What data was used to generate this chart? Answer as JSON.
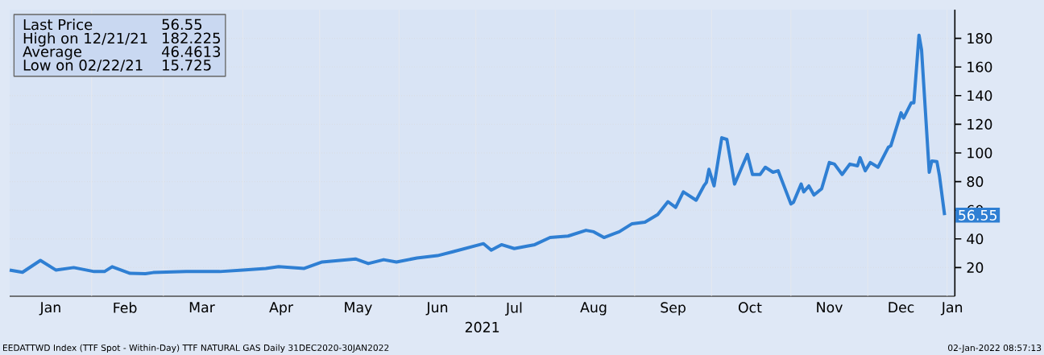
{
  "chart_data": {
    "type": "line",
    "xlabel": "2021",
    "x": [
      "2020-12-31",
      "2021-01-05",
      "2021-01-12",
      "2021-01-18",
      "2021-01-25",
      "2021-02-02",
      "2021-02-06",
      "2021-02-09",
      "2021-02-16",
      "2021-02-22",
      "2021-02-25",
      "2021-03-10",
      "2021-03-23",
      "2021-04-01",
      "2021-04-10",
      "2021-04-15",
      "2021-04-25",
      "2021-05-02",
      "2021-05-15",
      "2021-05-20",
      "2021-05-26",
      "2021-05-31",
      "2021-06-08",
      "2021-06-16",
      "2021-06-22",
      "2021-07-04",
      "2021-07-07",
      "2021-07-11",
      "2021-07-16",
      "2021-07-21",
      "2021-07-24",
      "2021-07-30",
      "2021-08-06",
      "2021-08-13",
      "2021-08-16",
      "2021-08-20",
      "2021-08-26",
      "2021-08-31",
      "2021-09-05",
      "2021-09-10",
      "2021-09-14",
      "2021-09-17",
      "2021-09-20",
      "2021-09-25",
      "2021-09-28",
      "2021-09-29",
      "2021-09-30",
      "2021-10-02",
      "2021-10-05",
      "2021-10-07",
      "2021-10-10",
      "2021-10-12",
      "2021-10-15",
      "2021-10-17",
      "2021-10-20",
      "2021-10-22",
      "2021-10-25",
      "2021-10-27",
      "2021-11-01",
      "2021-11-02",
      "2021-11-05",
      "2021-11-06",
      "2021-11-08",
      "2021-11-10",
      "2021-11-13",
      "2021-11-16",
      "2021-11-18",
      "2021-11-21",
      "2021-11-24",
      "2021-11-27",
      "2021-11-28",
      "2021-11-30",
      "2021-12-02",
      "2021-12-05",
      "2021-12-09",
      "2021-12-10",
      "2021-12-14",
      "2021-12-15",
      "2021-12-18",
      "2021-12-19",
      "2021-12-21",
      "2021-12-22",
      "2021-12-25",
      "2021-12-26",
      "2021-12-28",
      "2021-12-29",
      "2021-12-31"
    ],
    "series": [
      {
        "name": "Last Price",
        "color": "#2f7fd3",
        "values": [
          18.3,
          16.7,
          25,
          18.3,
          20,
          17.2,
          17.2,
          20.6,
          16,
          15.725,
          16.5,
          17.2,
          17.2,
          18.3,
          19.4,
          20.6,
          19.4,
          23.9,
          26,
          22.8,
          25.5,
          23.9,
          26.7,
          28.3,
          31,
          36.7,
          32.2,
          36,
          33.3,
          35,
          36,
          41,
          42,
          46,
          45,
          41,
          45,
          50.6,
          51.7,
          57,
          66,
          62,
          72.8,
          67,
          77,
          79.4,
          88.6,
          77,
          110.6,
          109.4,
          78.3,
          86.5,
          99,
          85,
          85,
          90,
          86.5,
          87.6,
          64.4,
          65.6,
          78.3,
          72.8,
          77,
          70.6,
          75,
          93.3,
          92.2,
          85,
          92.2,
          91,
          96.7,
          87.6,
          93.3,
          90,
          103.9,
          105,
          128,
          124.4,
          135,
          135,
          182.225,
          172,
          86.5,
          94.4,
          93.9,
          84,
          56.55
        ]
      }
    ],
    "xlim": [
      "2020-12-31",
      "2022-01-04"
    ],
    "xticks": [
      {
        "value": "2021-01-16",
        "label": "Jan"
      },
      {
        "value": "2021-02-14",
        "label": "Feb"
      },
      {
        "value": "2021-03-16",
        "label": "Mar"
      },
      {
        "value": "2021-04-16",
        "label": "Apr"
      },
      {
        "value": "2021-05-16",
        "label": "May"
      },
      {
        "value": "2021-06-16",
        "label": "Jun"
      },
      {
        "value": "2021-07-16",
        "label": "Jul"
      },
      {
        "value": "2021-08-16",
        "label": "Aug"
      },
      {
        "value": "2021-09-16",
        "label": "Sep"
      },
      {
        "value": "2021-10-16",
        "label": "Oct"
      },
      {
        "value": "2021-11-16",
        "label": "Nov"
      },
      {
        "value": "2021-12-14",
        "label": "Dec"
      },
      {
        "value": "2022-01-03",
        "label": "Jan"
      },
      {
        "value": "2021-02-01",
        "label": null
      },
      {
        "value": "2021-03-01",
        "label": null
      },
      {
        "value": "2021-04-01",
        "label": null
      },
      {
        "value": "2021-05-01",
        "label": null
      },
      {
        "value": "2021-06-01",
        "label": null
      },
      {
        "value": "2021-07-01",
        "label": null
      },
      {
        "value": "2021-08-01",
        "label": null
      },
      {
        "value": "2021-09-01",
        "label": null
      },
      {
        "value": "2021-10-01",
        "label": null
      },
      {
        "value": "2021-11-01",
        "label": null
      },
      {
        "value": "2021-12-01",
        "label": null
      },
      {
        "value": "2022-01-01",
        "label": null
      }
    ],
    "ylim": [
      0,
      200
    ],
    "yticks": [
      20,
      40,
      60,
      80,
      100,
      120,
      140,
      160,
      180
    ],
    "grid": true,
    "line_style": "solid",
    "marker": "none",
    "legend": "top left",
    "annotations": [
      "56.55",
      "High on 12/21/21",
      "182.225",
      "Average",
      "46.4613",
      "Low on 02/22/21",
      "15.725",
      {
        "text": "56.55",
        "x": "2021-12-31",
        "y": 56.55
      },
      "EEDATTWD Index (TTF Spot - Within-Day) TTF NATURAL GAS  Daily 31DEC2020-30JAN2022",
      "02-Jan-2022 08:57:13"
    ]
  }
}
